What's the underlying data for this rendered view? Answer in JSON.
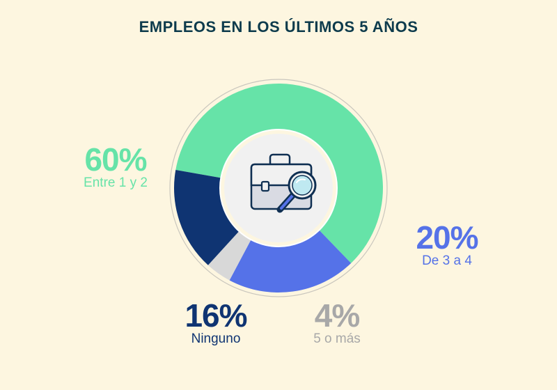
{
  "title": "EMPLEOS EN LOS ÚLTIMOS 5 AÑOS",
  "center_icon": "briefcase-magnifier-icon",
  "colors": {
    "background": "#fdf6e0",
    "title": "#0d3b4c",
    "outline": "#c9c6bd",
    "center": "#f1f1f1"
  },
  "chart_data": {
    "type": "pie",
    "style": "donut",
    "title": "EMPLEOS EN LOS ÚLTIMOS 5 AÑOS",
    "slices": [
      {
        "label": "Entre 1 y 2",
        "value": 60,
        "value_label": "60%",
        "color": "#66e3a8"
      },
      {
        "label": "De 3 a 4",
        "value": 20,
        "value_label": "20%",
        "color": "#5572e8"
      },
      {
        "label": "5 o más",
        "value": 4,
        "value_label": "4%",
        "color": "#d8d8d8"
      },
      {
        "label": "Ninguno",
        "value": 16,
        "value_label": "16%",
        "color": "#0f3472"
      }
    ]
  }
}
